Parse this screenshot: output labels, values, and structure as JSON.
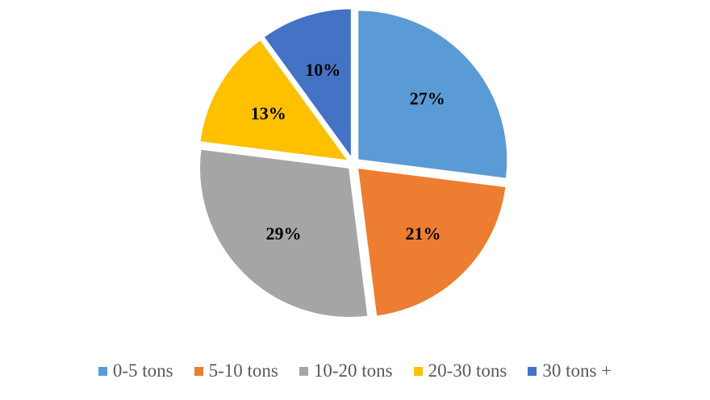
{
  "chart_data": {
    "type": "pie",
    "title": "",
    "slices": [
      {
        "label": "0-5 tons",
        "value": 27,
        "display": "27%",
        "color": "#5B9BD5"
      },
      {
        "label": "5-10 tons",
        "value": 21,
        "display": "21%",
        "color": "#ED7D31"
      },
      {
        "label": "10-20 tons",
        "value": 29,
        "display": "29%",
        "color": "#A5A5A5"
      },
      {
        "label": "20-30 tons",
        "value": 13,
        "display": "13%",
        "color": "#FFC000"
      },
      {
        "label": "30 tons +",
        "value": 10,
        "display": "10%",
        "color": "#4472C4"
      }
    ],
    "legend_position": "bottom",
    "exploded": true
  }
}
